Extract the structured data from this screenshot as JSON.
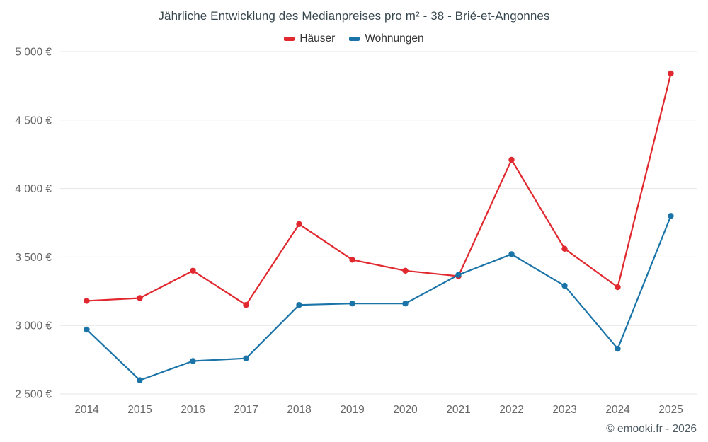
{
  "chart_data": {
    "type": "line",
    "title": "Jährliche Entwicklung des Medianpreises pro m² - 38 - Brié-et-Angonnes",
    "categories": [
      "2014",
      "2015",
      "2016",
      "2017",
      "2018",
      "2019",
      "2020",
      "2021",
      "2022",
      "2023",
      "2024",
      "2025"
    ],
    "series": [
      {
        "id": "haeuser",
        "name": "Häuser",
        "color": "#e0282e",
        "values": [
          3180,
          3200,
          3400,
          3150,
          3740,
          3480,
          3400,
          3360,
          4210,
          3560,
          3280,
          4840
        ]
      },
      {
        "id": "wohnungen",
        "name": "Wohnungen",
        "color": "#1b74a8",
        "values": [
          2970,
          2600,
          2740,
          2760,
          3150,
          3160,
          3160,
          3370,
          3520,
          3290,
          2830,
          3800
        ]
      }
    ],
    "ylim": [
      2500,
      5000
    ],
    "yticks": [
      {
        "value": 2500,
        "label": "2 500 €"
      },
      {
        "value": 3000,
        "label": "3 000 €"
      },
      {
        "value": 3500,
        "label": "3 500 €"
      },
      {
        "value": 4000,
        "label": "4 000 €"
      },
      {
        "value": 4500,
        "label": "4 500 €"
      },
      {
        "value": 5000,
        "label": "5 000 €"
      }
    ],
    "xlabel": "",
    "ylabel": "",
    "grid": "horizontal",
    "legend_position": "top-center"
  },
  "footer": {
    "credit": "© emooki.fr - 2026"
  }
}
